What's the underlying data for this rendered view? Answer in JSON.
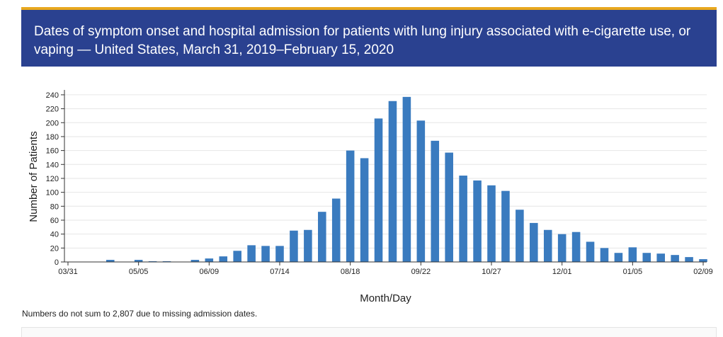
{
  "header": {
    "title": "Dates of symptom onset and hospital admission for patients with lung injury associated with e-cigarette use, or vaping — United States, March 31, 2019–February 15, 2020"
  },
  "footnote": "Numbers do not sum to 2,807 due to missing admission dates.",
  "colors": {
    "bar": "#3a7bbf",
    "header_bg": "#2a4190",
    "header_accent": "#e8a81e"
  },
  "chart_data": {
    "type": "bar",
    "title": "",
    "xlabel": "Month/Day",
    "ylabel": "Number of Patients",
    "ylim": [
      0,
      245
    ],
    "yticks": [
      0,
      20,
      40,
      60,
      80,
      100,
      120,
      140,
      160,
      180,
      200,
      220,
      240
    ],
    "grid": true,
    "categories": [
      "03/31",
      "04/07",
      "04/14",
      "04/21",
      "04/28",
      "05/05",
      "05/12",
      "05/19",
      "05/26",
      "06/02",
      "06/09",
      "06/16",
      "06/23",
      "06/30",
      "07/07",
      "07/14",
      "07/21",
      "07/28",
      "08/04",
      "08/11",
      "08/18",
      "08/25",
      "09/01",
      "09/08",
      "09/15",
      "09/22",
      "09/29",
      "10/06",
      "10/13",
      "10/20",
      "10/27",
      "11/03",
      "11/10",
      "11/17",
      "11/24",
      "12/01",
      "12/08",
      "12/15",
      "12/22",
      "12/29",
      "01/05",
      "01/12",
      "01/19",
      "01/26",
      "02/02",
      "02/09"
    ],
    "xtick_labels": [
      "03/31",
      "05/05",
      "06/09",
      "07/14",
      "08/18",
      "09/22",
      "10/27",
      "12/01",
      "01/05",
      "02/09"
    ],
    "values": [
      0,
      0,
      0,
      3,
      0,
      3,
      1,
      1,
      0,
      3,
      5,
      8,
      16,
      24,
      23,
      23,
      45,
      46,
      72,
      91,
      160,
      149,
      206,
      231,
      237,
      203,
      174,
      157,
      124,
      117,
      110,
      102,
      75,
      56,
      46,
      40,
      43,
      29,
      20,
      13,
      21,
      13,
      12,
      10,
      7,
      4
    ]
  }
}
